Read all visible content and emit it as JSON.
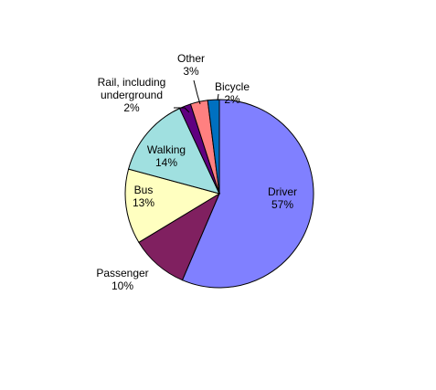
{
  "chart_data": {
    "type": "pie",
    "slices": [
      {
        "label": "Driver",
        "value": 57,
        "pct_label": "57%",
        "color": "#8080ff"
      },
      {
        "label": "Passenger",
        "value": 10,
        "pct_label": "10%",
        "color": "#802060"
      },
      {
        "label": "Bus",
        "value": 13,
        "pct_label": "13%",
        "color": "#ffffc0"
      },
      {
        "label": "Walking",
        "value": 14,
        "pct_label": "14%",
        "color": "#a0e0e0"
      },
      {
        "label": "Rail, including underground",
        "label_lines": [
          "Rail, including",
          "underground"
        ],
        "value": 2,
        "pct_label": "2%",
        "color": "#600080"
      },
      {
        "label": "Other",
        "value": 3,
        "pct_label": "3%",
        "color": "#ff8080"
      },
      {
        "label": "Bicycle",
        "value": 2,
        "pct_label": "2%",
        "color": "#0070c0"
      }
    ],
    "legend": "none",
    "title": ""
  }
}
